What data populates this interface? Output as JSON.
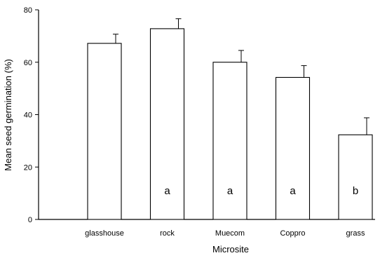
{
  "chart_data": {
    "type": "bar",
    "title": "",
    "xlabel": "Microsite",
    "ylabel": "Mean seed germination (%)",
    "ylim": [
      0,
      80
    ],
    "yticks": [
      0,
      20,
      40,
      60,
      80
    ],
    "categories": [
      "glasshouse",
      "rock",
      "Muecom",
      "Coppro",
      "grass"
    ],
    "values": [
      67.2,
      72.8,
      60.0,
      54.2,
      32.3
    ],
    "errors": [
      3.5,
      3.8,
      4.5,
      4.5,
      6.5
    ],
    "significance_labels": [
      "",
      "a",
      "a",
      "a",
      "b"
    ],
    "grid": false,
    "legend": "none",
    "bar_color": "#ffffff",
    "edge_color": "#000000"
  }
}
